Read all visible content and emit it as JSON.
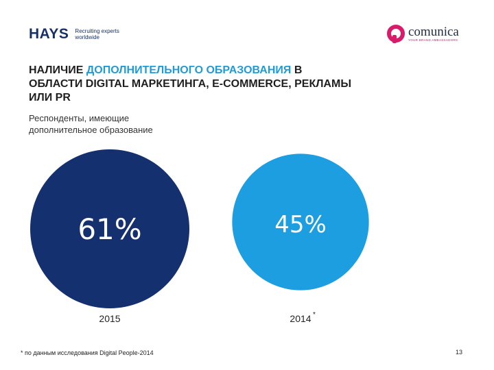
{
  "header": {
    "hays_logo": {
      "word": "HAYS",
      "tagline_1": "Recruiting experts",
      "tagline_2": "worldwide"
    },
    "comunica_logo": {
      "word": "comunica",
      "tagline": "YOUR BRAND AMBASSADORS"
    }
  },
  "title": {
    "part1": "НАЛИЧИЕ ",
    "highlight": "ДОПОЛНИТЕЛЬНОГО ОБРАЗОВАНИЯ",
    "part2": " В ОБЛАСТИ DIGITAL МАРКЕТИНГА, E-COMMERCE, РЕКЛАМЫ ИЛИ PR"
  },
  "subtitle": "Респонденты, имеющие дополнительное образование",
  "chart_data": {
    "type": "bubble",
    "title": "НАЛИЧИЕ ДОПОЛНИТЕЛЬНОГО ОБРАЗОВАНИЯ В ОБЛАСТИ DIGITAL МАРКЕТИНГА, E-COMMERCE, РЕКЛАМЫ ИЛИ PR",
    "unit": "%",
    "categories": [
      "2015",
      "2014"
    ],
    "values": [
      61,
      45
    ],
    "value_labels": [
      "61%",
      "45%"
    ],
    "category_markers": [
      "",
      "*"
    ],
    "colors": [
      "#15306f",
      "#1d9ee0"
    ]
  },
  "footnote": "* по данным исследования Digital People-2014",
  "page_number": "13"
}
